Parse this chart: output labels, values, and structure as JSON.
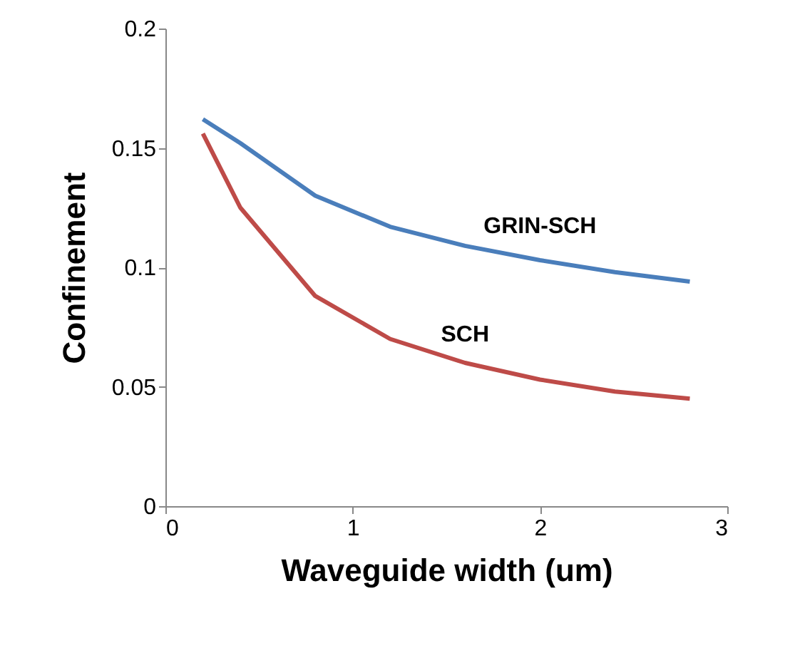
{
  "chart_data": {
    "type": "line",
    "xlabel": "Waveguide width (um)",
    "ylabel": "Confinement",
    "x": [
      0.2,
      0.4,
      0.8,
      1.2,
      1.6,
      2.0,
      2.4,
      2.8
    ],
    "series": [
      {
        "name": "GRIN-SCH",
        "color": "#4a7ebb",
        "values": [
          0.162,
          0.152,
          0.13,
          0.117,
          0.109,
          0.103,
          0.098,
          0.094
        ]
      },
      {
        "name": "SCH",
        "color": "#be4b48",
        "values": [
          0.156,
          0.125,
          0.088,
          0.07,
          0.06,
          0.053,
          0.048,
          0.045
        ]
      }
    ],
    "xlim": [
      0,
      3
    ],
    "xticks": [
      0,
      1,
      2,
      3
    ],
    "ylim": [
      0,
      0.2
    ],
    "yticks": [
      0,
      0.05,
      0.1,
      0.15,
      0.2
    ],
    "grid": false,
    "legend": false,
    "marker": "none",
    "line_style": "solid"
  }
}
